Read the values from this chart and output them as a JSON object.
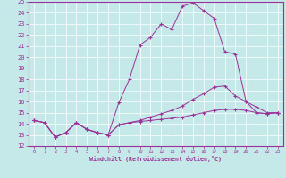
{
  "xlabel": "Windchill (Refroidissement éolien,°C)",
  "xlim": [
    -0.5,
    23.5
  ],
  "ylim": [
    12,
    25
  ],
  "xticks": [
    0,
    1,
    2,
    3,
    4,
    5,
    6,
    7,
    8,
    9,
    10,
    11,
    12,
    13,
    14,
    15,
    16,
    17,
    18,
    19,
    20,
    21,
    22,
    23
  ],
  "yticks": [
    12,
    13,
    14,
    15,
    16,
    17,
    18,
    19,
    20,
    21,
    22,
    23,
    24,
    25
  ],
  "bg_color": "#c5e8e8",
  "line_color": "#993399",
  "line1_x": [
    0,
    1,
    2,
    3,
    4,
    5,
    6,
    7,
    8,
    9,
    10,
    11,
    12,
    13,
    14,
    15,
    16,
    17,
    18,
    19,
    20,
    21,
    22,
    23
  ],
  "line1_y": [
    14.3,
    14.1,
    12.8,
    13.2,
    14.1,
    13.5,
    13.2,
    13.0,
    13.9,
    14.1,
    14.2,
    14.3,
    14.4,
    14.5,
    14.6,
    14.8,
    15.0,
    15.2,
    15.3,
    15.3,
    15.2,
    15.0,
    14.9,
    15.0
  ],
  "line2_x": [
    0,
    1,
    2,
    3,
    4,
    5,
    6,
    7,
    8,
    9,
    10,
    11,
    12,
    13,
    14,
    15,
    16,
    17,
    18,
    19,
    20,
    21,
    22,
    23
  ],
  "line2_y": [
    14.3,
    14.1,
    12.8,
    13.2,
    14.1,
    13.5,
    13.2,
    13.0,
    15.9,
    18.0,
    21.1,
    21.8,
    23.0,
    22.5,
    24.6,
    24.9,
    24.2,
    23.5,
    20.5,
    20.3,
    16.0,
    15.0,
    14.9,
    15.0
  ],
  "line3_x": [
    0,
    1,
    2,
    3,
    4,
    5,
    6,
    7,
    8,
    9,
    10,
    11,
    12,
    13,
    14,
    15,
    16,
    17,
    18,
    19,
    20,
    21,
    22,
    23
  ],
  "line3_y": [
    14.3,
    14.1,
    12.8,
    13.2,
    14.1,
    13.5,
    13.2,
    13.0,
    13.9,
    14.1,
    14.3,
    14.6,
    14.9,
    15.2,
    15.6,
    16.2,
    16.7,
    17.3,
    17.4,
    16.5,
    16.0,
    15.5,
    15.0,
    15.0
  ]
}
